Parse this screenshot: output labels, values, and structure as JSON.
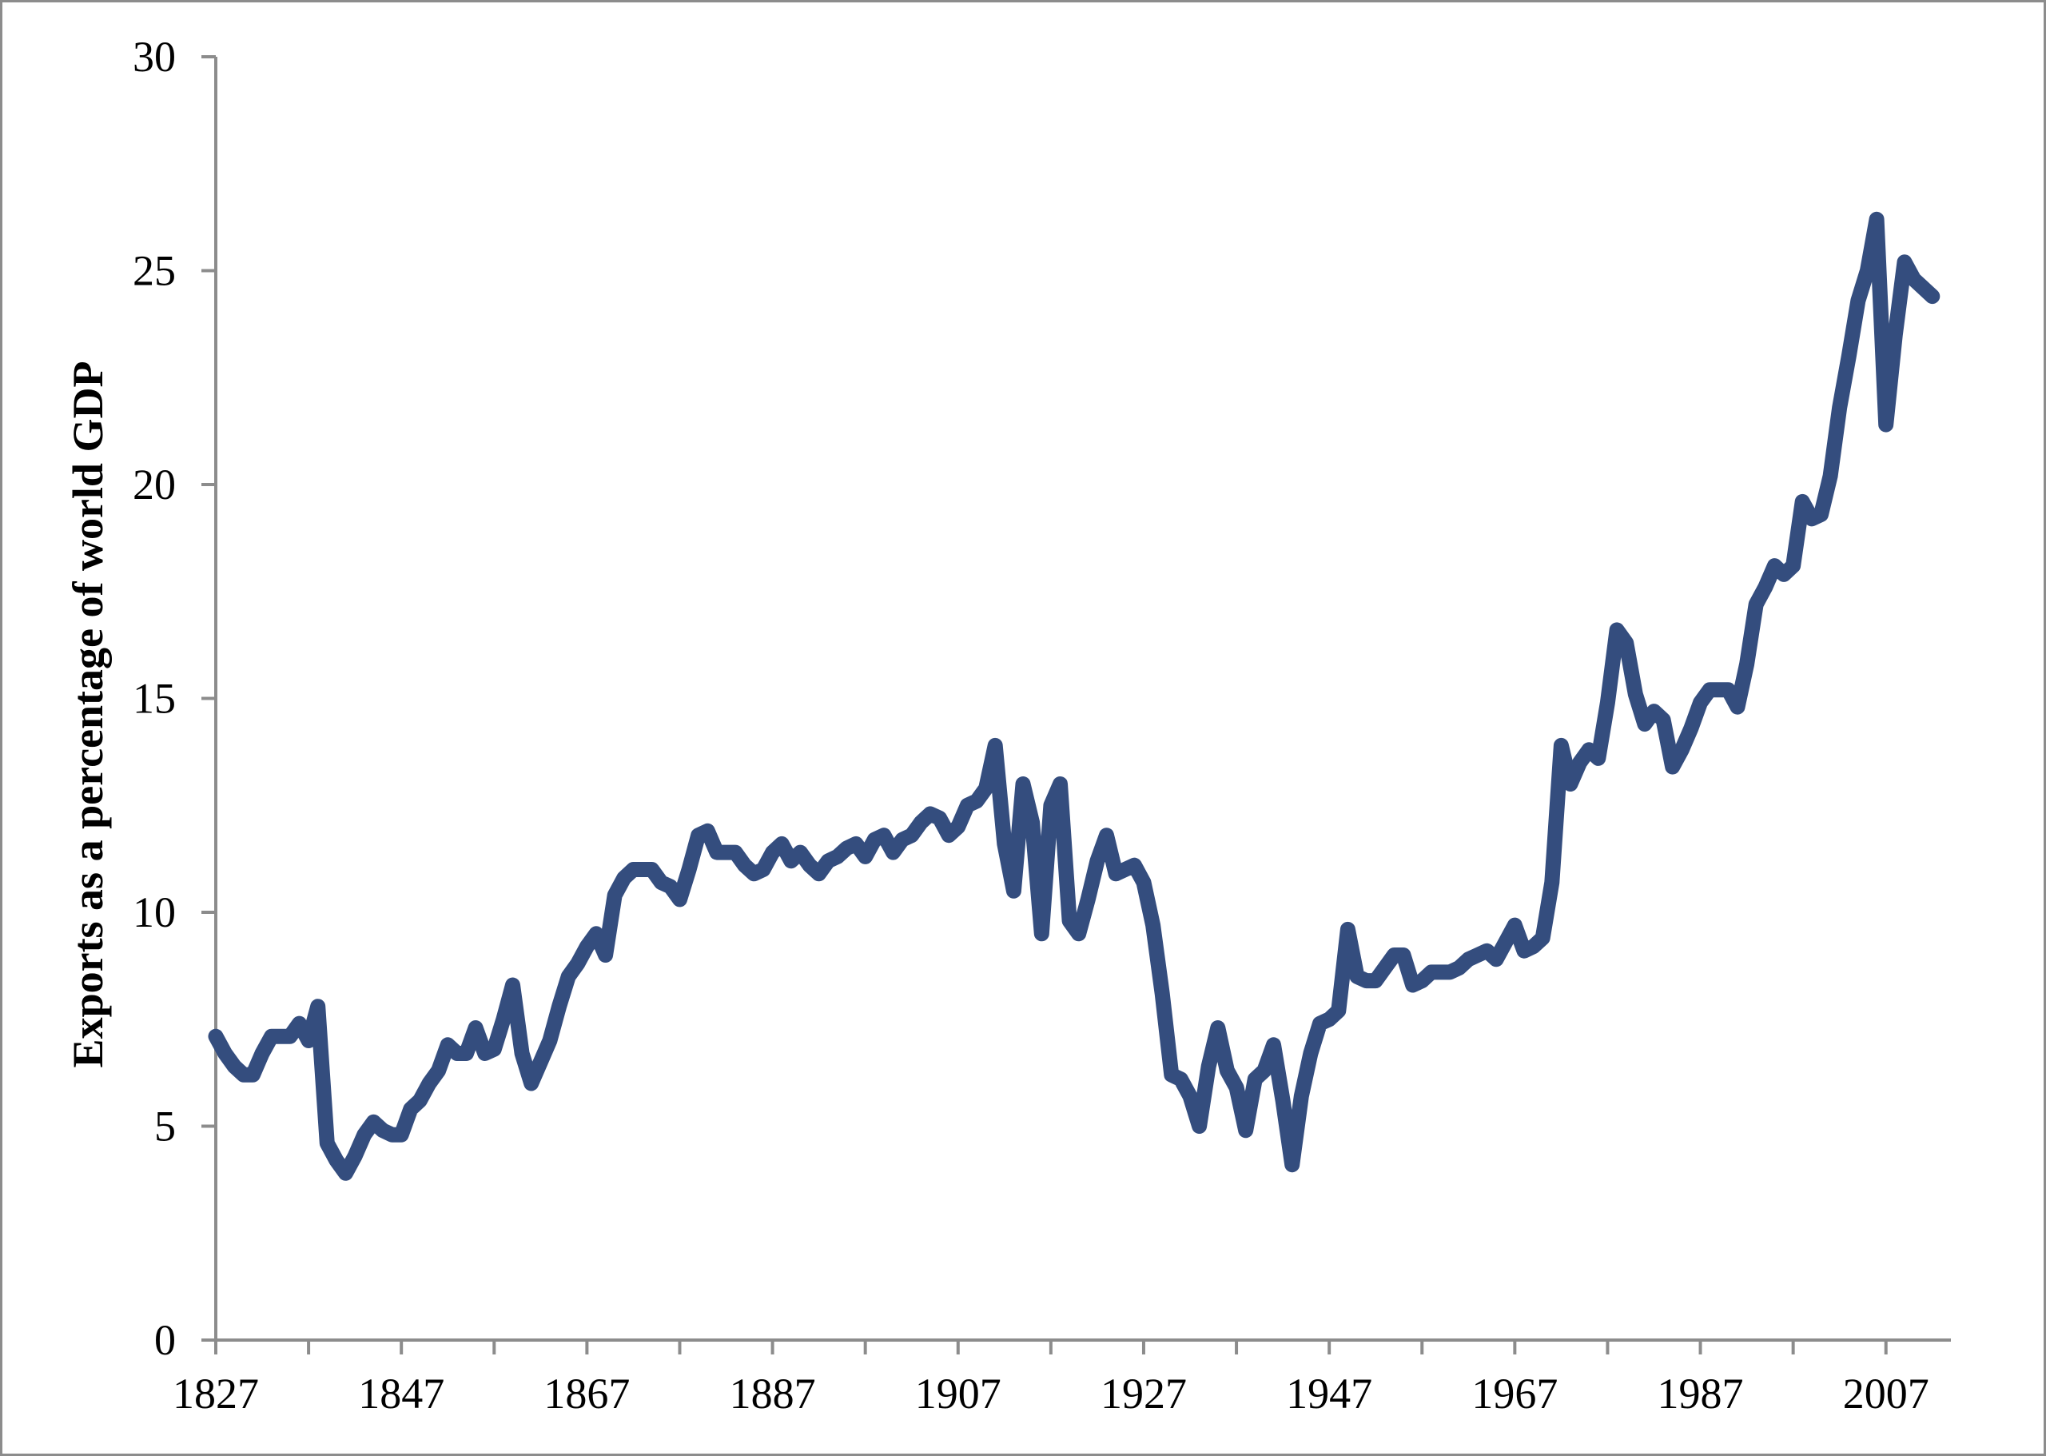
{
  "chart_data": {
    "type": "line",
    "title": "",
    "xlabel": "",
    "ylabel": "Exports as a percentage of world GDP",
    "xlim": [
      1827,
      2014
    ],
    "ylim": [
      0,
      30
    ],
    "x_ticks": [
      1827,
      1847,
      1867,
      1887,
      1907,
      1927,
      1947,
      1967,
      1987,
      2007
    ],
    "y_ticks": [
      0,
      5,
      10,
      15,
      20,
      25,
      30
    ],
    "grid": false,
    "legend": "none",
    "colors": {
      "line": "#344d7e",
      "axis": "#8c8c8c",
      "frame": "#8c8c8c"
    },
    "series": [
      {
        "points": [
          [
            1827,
            7.1
          ],
          [
            1828,
            6.7
          ],
          [
            1829,
            6.4
          ],
          [
            1830,
            6.2
          ],
          [
            1831,
            6.2
          ],
          [
            1832,
            6.7
          ],
          [
            1833,
            7.1
          ],
          [
            1834,
            7.1
          ],
          [
            1835,
            7.1
          ],
          [
            1836,
            7.4
          ],
          [
            1837,
            7.0
          ],
          [
            1838,
            7.8
          ],
          [
            1839,
            4.6
          ],
          [
            1840,
            4.2
          ],
          [
            1841,
            3.9
          ],
          [
            1842,
            4.3
          ],
          [
            1843,
            4.8
          ],
          [
            1844,
            5.1
          ],
          [
            1845,
            4.9
          ],
          [
            1846,
            4.8
          ],
          [
            1847,
            4.8
          ],
          [
            1848,
            5.4
          ],
          [
            1849,
            5.6
          ],
          [
            1850,
            6.0
          ],
          [
            1851,
            6.3
          ],
          [
            1852,
            6.9
          ],
          [
            1853,
            6.7
          ],
          [
            1854,
            6.7
          ],
          [
            1855,
            7.3
          ],
          [
            1856,
            6.7
          ],
          [
            1857,
            6.8
          ],
          [
            1858,
            7.5
          ],
          [
            1859,
            8.3
          ],
          [
            1860,
            6.7
          ],
          [
            1861,
            6.0
          ],
          [
            1862,
            6.5
          ],
          [
            1863,
            7.0
          ],
          [
            1864,
            7.8
          ],
          [
            1865,
            8.5
          ],
          [
            1866,
            8.8
          ],
          [
            1867,
            9.2
          ],
          [
            1868,
            9.5
          ],
          [
            1869,
            9.0
          ],
          [
            1870,
            10.4
          ],
          [
            1871,
            10.8
          ],
          [
            1872,
            11.0
          ],
          [
            1873,
            11.0
          ],
          [
            1874,
            11.0
          ],
          [
            1875,
            10.7
          ],
          [
            1876,
            10.6
          ],
          [
            1877,
            10.3
          ],
          [
            1878,
            11.0
          ],
          [
            1879,
            11.8
          ],
          [
            1880,
            11.9
          ],
          [
            1881,
            11.4
          ],
          [
            1882,
            11.4
          ],
          [
            1883,
            11.4
          ],
          [
            1884,
            11.1
          ],
          [
            1885,
            10.9
          ],
          [
            1886,
            11.0
          ],
          [
            1887,
            11.4
          ],
          [
            1888,
            11.6
          ],
          [
            1889,
            11.2
          ],
          [
            1890,
            11.4
          ],
          [
            1891,
            11.1
          ],
          [
            1892,
            10.9
          ],
          [
            1893,
            11.2
          ],
          [
            1894,
            11.3
          ],
          [
            1895,
            11.5
          ],
          [
            1896,
            11.6
          ],
          [
            1897,
            11.3
          ],
          [
            1898,
            11.7
          ],
          [
            1899,
            11.8
          ],
          [
            1900,
            11.4
          ],
          [
            1901,
            11.7
          ],
          [
            1902,
            11.8
          ],
          [
            1903,
            12.1
          ],
          [
            1904,
            12.3
          ],
          [
            1905,
            12.2
          ],
          [
            1906,
            11.8
          ],
          [
            1907,
            12.0
          ],
          [
            1908,
            12.5
          ],
          [
            1909,
            12.6
          ],
          [
            1910,
            12.9
          ],
          [
            1911,
            13.9
          ],
          [
            1912,
            11.6
          ],
          [
            1913,
            10.5
          ],
          [
            1914,
            13.0
          ],
          [
            1915,
            12.1
          ],
          [
            1916,
            9.5
          ],
          [
            1917,
            12.5
          ],
          [
            1918,
            13.0
          ],
          [
            1919,
            9.8
          ],
          [
            1920,
            9.5
          ],
          [
            1921,
            10.3
          ],
          [
            1922,
            11.2
          ],
          [
            1923,
            11.8
          ],
          [
            1924,
            10.9
          ],
          [
            1925,
            11.0
          ],
          [
            1926,
            11.1
          ],
          [
            1927,
            10.7
          ],
          [
            1928,
            9.7
          ],
          [
            1929,
            8.1
          ],
          [
            1930,
            6.2
          ],
          [
            1931,
            6.1
          ],
          [
            1932,
            5.7
          ],
          [
            1933,
            5.0
          ],
          [
            1934,
            6.4
          ],
          [
            1935,
            7.3
          ],
          [
            1936,
            6.3
          ],
          [
            1937,
            5.9
          ],
          [
            1938,
            4.9
          ],
          [
            1939,
            6.1
          ],
          [
            1940,
            6.3
          ],
          [
            1941,
            6.9
          ],
          [
            1942,
            5.6
          ],
          [
            1943,
            4.1
          ],
          [
            1944,
            5.7
          ],
          [
            1945,
            6.7
          ],
          [
            1946,
            7.4
          ],
          [
            1947,
            7.5
          ],
          [
            1948,
            7.7
          ],
          [
            1949,
            9.6
          ],
          [
            1950,
            8.5
          ],
          [
            1951,
            8.4
          ],
          [
            1952,
            8.4
          ],
          [
            1953,
            8.7
          ],
          [
            1954,
            9.0
          ],
          [
            1955,
            9.0
          ],
          [
            1956,
            8.3
          ],
          [
            1957,
            8.4
          ],
          [
            1958,
            8.6
          ],
          [
            1959,
            8.6
          ],
          [
            1960,
            8.6
          ],
          [
            1961,
            8.7
          ],
          [
            1962,
            8.9
          ],
          [
            1963,
            9.0
          ],
          [
            1964,
            9.1
          ],
          [
            1965,
            8.9
          ],
          [
            1966,
            9.3
          ],
          [
            1967,
            9.7
          ],
          [
            1968,
            9.1
          ],
          [
            1969,
            9.2
          ],
          [
            1970,
            9.4
          ],
          [
            1971,
            10.7
          ],
          [
            1972,
            13.9
          ],
          [
            1973,
            13.0
          ],
          [
            1974,
            13.5
          ],
          [
            1975,
            13.8
          ],
          [
            1976,
            13.6
          ],
          [
            1977,
            14.9
          ],
          [
            1978,
            16.6
          ],
          [
            1979,
            16.3
          ],
          [
            1980,
            15.1
          ],
          [
            1981,
            14.4
          ],
          [
            1982,
            14.7
          ],
          [
            1983,
            14.5
          ],
          [
            1984,
            13.4
          ],
          [
            1985,
            13.8
          ],
          [
            1986,
            14.3
          ],
          [
            1987,
            14.9
          ],
          [
            1988,
            15.2
          ],
          [
            1989,
            15.2
          ],
          [
            1990,
            15.2
          ],
          [
            1991,
            14.8
          ],
          [
            1992,
            15.8
          ],
          [
            1993,
            17.2
          ],
          [
            1994,
            17.6
          ],
          [
            1995,
            18.1
          ],
          [
            1996,
            17.9
          ],
          [
            1997,
            18.1
          ],
          [
            1998,
            19.6
          ],
          [
            1999,
            19.2
          ],
          [
            2000,
            19.3
          ],
          [
            2001,
            20.2
          ],
          [
            2002,
            21.8
          ],
          [
            2003,
            23.0
          ],
          [
            2004,
            24.3
          ],
          [
            2005,
            25.0
          ],
          [
            2006,
            26.2
          ],
          [
            2007,
            21.4
          ],
          [
            2008,
            23.5
          ],
          [
            2009,
            25.2
          ],
          [
            2010,
            24.8
          ],
          [
            2011,
            24.6
          ],
          [
            2012,
            24.4
          ]
        ]
      }
    ]
  }
}
